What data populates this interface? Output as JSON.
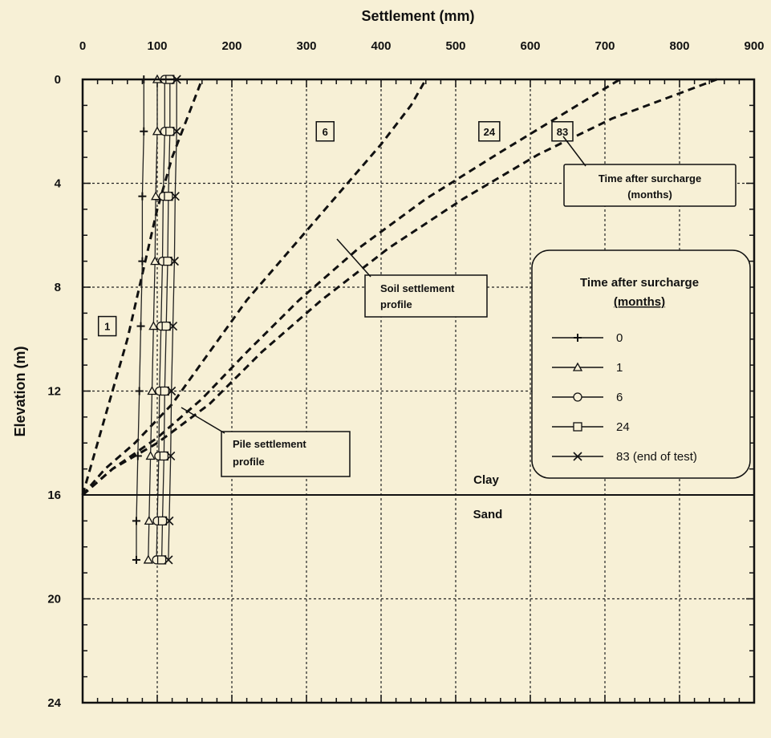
{
  "chart_data": {
    "type": "line",
    "xlabel": "Settlement (mm)",
    "ylabel": "Elevation (m)",
    "xlim": [
      0,
      900
    ],
    "ylim": [
      24,
      0
    ],
    "x_ticks": [
      "0",
      "100",
      "200",
      "300",
      "400",
      "500",
      "600",
      "700",
      "800",
      "900"
    ],
    "y_ticks": [
      "0",
      "4",
      "8",
      "12",
      "16",
      "20",
      "24"
    ],
    "grid": true,
    "soil_settlement_profiles": [
      {
        "label": "1",
        "points": [
          [
            0,
            16
          ],
          [
            20,
            14
          ],
          [
            40,
            12
          ],
          [
            60,
            10
          ],
          [
            80,
            7.5
          ],
          [
            100,
            5
          ],
          [
            120,
            3
          ],
          [
            140,
            1.5
          ],
          [
            160,
            0
          ]
        ]
      },
      {
        "label": "6",
        "points": [
          [
            0,
            16
          ],
          [
            30,
            15
          ],
          [
            70,
            14
          ],
          [
            120,
            12.5
          ],
          [
            170,
            10.5
          ],
          [
            220,
            8.5
          ],
          [
            280,
            6.5
          ],
          [
            340,
            4.5
          ],
          [
            400,
            2.5
          ],
          [
            440,
            1
          ],
          [
            460,
            0
          ]
        ]
      },
      {
        "label": "24",
        "points": [
          [
            0,
            16
          ],
          [
            40,
            15
          ],
          [
            100,
            13.8
          ],
          [
            160,
            12.3
          ],
          [
            220,
            10.5
          ],
          [
            290,
            8.5
          ],
          [
            370,
            6.5
          ],
          [
            460,
            4.6
          ],
          [
            560,
            2.8
          ],
          [
            640,
            1.4
          ],
          [
            720,
            0
          ]
        ]
      },
      {
        "label": "83",
        "points": [
          [
            0,
            16
          ],
          [
            40,
            15
          ],
          [
            100,
            14
          ],
          [
            170,
            12.5
          ],
          [
            240,
            10.5
          ],
          [
            320,
            8.5
          ],
          [
            410,
            6.5
          ],
          [
            510,
            4.6
          ],
          [
            610,
            2.9
          ],
          [
            710,
            1.5
          ],
          [
            850,
            0
          ]
        ]
      }
    ],
    "pile_settlement_profiles": [
      {
        "name": "0",
        "marker": "plus",
        "points": [
          [
            82,
            0
          ],
          [
            82,
            2
          ],
          [
            80,
            4.5
          ],
          [
            80,
            7
          ],
          [
            78,
            9.5
          ],
          [
            76,
            12
          ],
          [
            74,
            14.5
          ],
          [
            72,
            17
          ],
          [
            72,
            18.5
          ]
        ]
      },
      {
        "name": "1",
        "marker": "triangle",
        "points": [
          [
            100,
            0
          ],
          [
            100,
            2
          ],
          [
            98,
            4.5
          ],
          [
            97,
            7
          ],
          [
            95,
            9.5
          ],
          [
            93,
            12
          ],
          [
            91,
            14.5
          ],
          [
            89,
            17
          ],
          [
            88,
            18.5
          ]
        ]
      },
      {
        "name": "6",
        "marker": "circle",
        "points": [
          [
            110,
            0
          ],
          [
            110,
            2
          ],
          [
            108,
            4.5
          ],
          [
            107,
            7
          ],
          [
            105,
            9.5
          ],
          [
            103,
            12
          ],
          [
            102,
            14.5
          ],
          [
            100,
            17
          ],
          [
            99,
            18.5
          ]
        ]
      },
      {
        "name": "24",
        "marker": "square",
        "points": [
          [
            117,
            0
          ],
          [
            117,
            2
          ],
          [
            115,
            4.5
          ],
          [
            114,
            7
          ],
          [
            112,
            9.5
          ],
          [
            110,
            12
          ],
          [
            109,
            14.5
          ],
          [
            107,
            17
          ],
          [
            106,
            18.5
          ]
        ]
      },
      {
        "name": "83 (end of test)",
        "marker": "x",
        "points": [
          [
            126,
            0
          ],
          [
            126,
            2
          ],
          [
            124,
            4.5
          ],
          [
            123,
            7
          ],
          [
            121,
            9.5
          ],
          [
            119,
            12
          ],
          [
            118,
            14.5
          ],
          [
            116,
            17
          ],
          [
            115,
            18.5
          ]
        ]
      }
    ],
    "legend": {
      "title": "Time after surcharge",
      "subtitle": "(months)",
      "placement": "right-middle"
    },
    "annotations": {
      "time_note_line1": "Time after surcharge",
      "time_note_line2": "(months)",
      "soil_note_line1": "Soil settlement",
      "soil_note_line2": "profile",
      "pile_note_line1": "Pile settlement",
      "pile_note_line2": "profile",
      "clay": "Clay",
      "sand": "Sand",
      "interface_elevation": 16
    }
  }
}
